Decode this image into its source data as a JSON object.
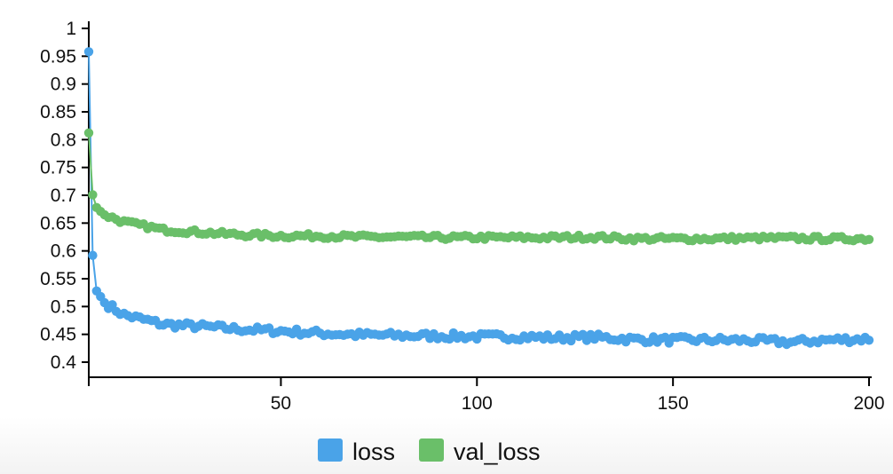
{
  "chart_data": {
    "type": "line",
    "x_ticks": [
      50,
      100,
      150,
      200
    ],
    "y_ticks": [
      0.4,
      0.45,
      0.5,
      0.55,
      0.6,
      0.65,
      0.7,
      0.75,
      0.8,
      0.85,
      0.9,
      0.95,
      1
    ],
    "x_tick_labels": [
      "50",
      "100",
      "150",
      "200"
    ],
    "y_tick_labels": [
      "0.4",
      "0.45",
      "0.5",
      "0.55",
      "0.6",
      "0.65",
      "0.7",
      "0.75",
      "0.8",
      "0.85",
      "0.9",
      "0.95",
      "1"
    ],
    "xlim": [
      1,
      200
    ],
    "ylim": [
      0.38,
      1.0
    ],
    "legend_position": "bottom-center",
    "markers": true,
    "series": [
      {
        "name": "loss",
        "color": "#4aa3e8",
        "x": [
          1,
          2,
          3,
          4,
          5,
          10,
          20,
          30,
          40,
          50,
          60,
          70,
          80,
          90,
          100,
          110,
          120,
          130,
          140,
          150,
          160,
          170,
          180,
          190,
          200
        ],
        "y": [
          0.958,
          0.592,
          0.528,
          0.518,
          0.507,
          0.485,
          0.468,
          0.464,
          0.459,
          0.456,
          0.452,
          0.449,
          0.448,
          0.447,
          0.446,
          0.446,
          0.444,
          0.445,
          0.441,
          0.44,
          0.44,
          0.439,
          0.436,
          0.44,
          0.442
        ]
      },
      {
        "name": "val_loss",
        "color": "#6abf69",
        "x": [
          1,
          2,
          3,
          4,
          5,
          10,
          20,
          30,
          40,
          50,
          60,
          70,
          80,
          90,
          100,
          110,
          120,
          130,
          140,
          150,
          160,
          170,
          180,
          190,
          200
        ],
        "y": [
          0.812,
          0.701,
          0.678,
          0.671,
          0.665,
          0.652,
          0.638,
          0.633,
          0.629,
          0.627,
          0.627,
          0.625,
          0.625,
          0.624,
          0.624,
          0.624,
          0.624,
          0.625,
          0.622,
          0.622,
          0.622,
          0.623,
          0.623,
          0.622,
          0.622
        ]
      }
    ]
  }
}
